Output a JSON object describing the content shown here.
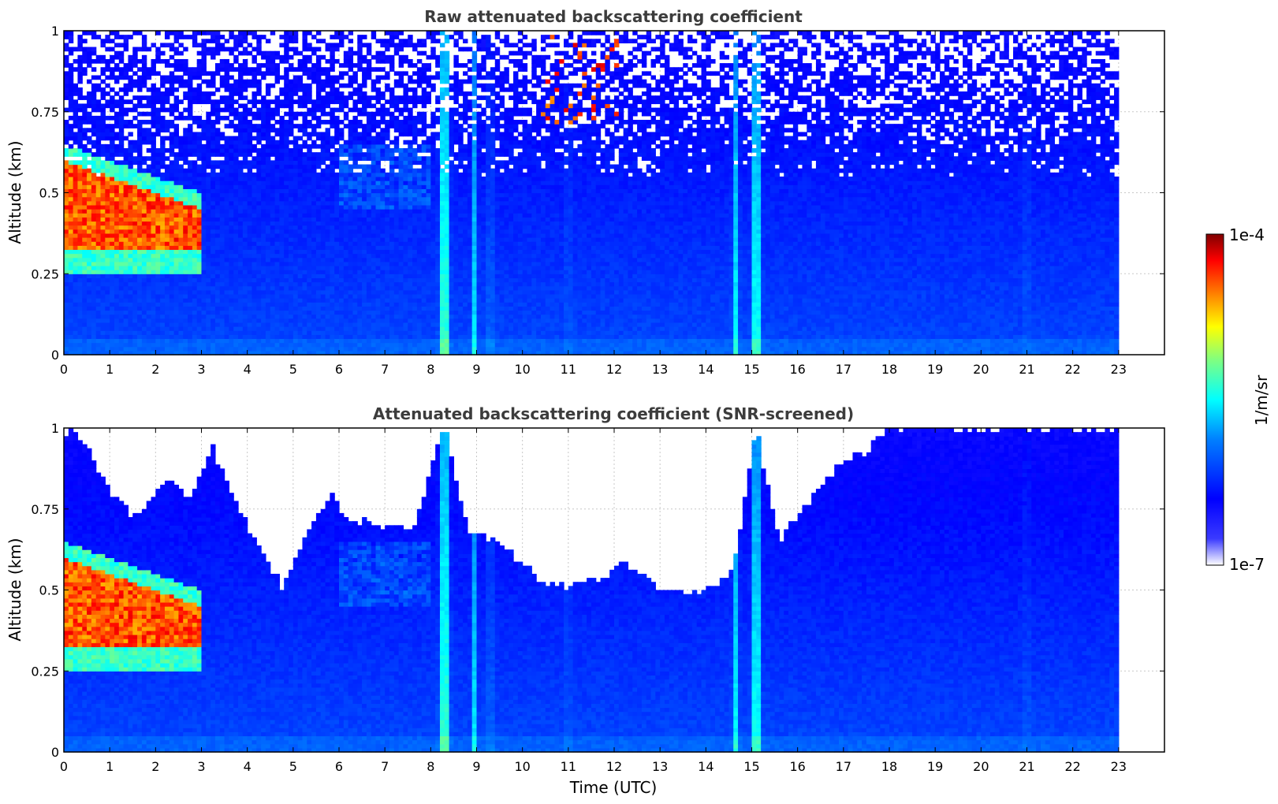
{
  "chart_data": [
    {
      "type": "heatmap",
      "title": "Raw attenuated backscattering coefficient",
      "xlabel": "",
      "ylabel": "Altitude (km)",
      "xlim": [
        0,
        24
      ],
      "ylim": [
        0,
        1
      ],
      "xticks": [
        "0",
        "1",
        "2",
        "3",
        "4",
        "5",
        "6",
        "7",
        "8",
        "9",
        "10",
        "11",
        "12",
        "13",
        "14",
        "15",
        "16",
        "17",
        "18",
        "19",
        "20",
        "21",
        "22",
        "23"
      ],
      "yticks": [
        "0",
        "0.25",
        "0.5",
        "0.75",
        "1"
      ],
      "data_end_time": 23,
      "grid": true,
      "features": [
        {
          "label": "low cloud layer",
          "x": [
            0,
            3
          ],
          "y": [
            0.3,
            0.65
          ],
          "level": "high"
        },
        {
          "label": "vertical streak",
          "x": 8.3,
          "level": "medium"
        },
        {
          "label": "vertical streak",
          "x": 15.1,
          "level": "medium"
        },
        {
          "label": "high scatter",
          "x": [
            10.4,
            12.3
          ],
          "y": [
            0.7,
            1.0
          ],
          "level": "high"
        }
      ]
    },
    {
      "type": "heatmap",
      "title": "Attenuated backscattering coefficient (SNR-screened)",
      "xlabel": "Time (UTC)",
      "ylabel": "Altitude (km)",
      "xlim": [
        0,
        24
      ],
      "ylim": [
        0,
        1
      ],
      "xticks": [
        "0",
        "1",
        "2",
        "3",
        "4",
        "5",
        "6",
        "7",
        "8",
        "9",
        "10",
        "11",
        "12",
        "13",
        "14",
        "15",
        "16",
        "17",
        "18",
        "19",
        "20",
        "21",
        "22",
        "23"
      ],
      "yticks": [
        "0",
        "0.25",
        "0.5",
        "0.75",
        "1"
      ],
      "data_end_time": 23,
      "grid": true,
      "screened_top_altitude": [
        [
          0,
          1.0
        ],
        [
          0.5,
          0.95
        ],
        [
          1.0,
          0.8
        ],
        [
          1.6,
          0.72
        ],
        [
          2.2,
          0.85
        ],
        [
          2.8,
          0.78
        ],
        [
          3.2,
          0.95
        ],
        [
          3.8,
          0.75
        ],
        [
          4.3,
          0.62
        ],
        [
          4.8,
          0.5
        ],
        [
          5.2,
          0.65
        ],
        [
          5.8,
          0.8
        ],
        [
          6.2,
          0.72
        ],
        [
          7.0,
          0.7
        ],
        [
          7.6,
          0.68
        ],
        [
          8.3,
          1.0
        ],
        [
          8.8,
          0.68
        ],
        [
          9.5,
          0.65
        ],
        [
          10.2,
          0.55
        ],
        [
          11.0,
          0.5
        ],
        [
          11.8,
          0.55
        ],
        [
          12.2,
          0.6
        ],
        [
          13.0,
          0.5
        ],
        [
          14.0,
          0.5
        ],
        [
          14.6,
          0.56
        ],
        [
          15.1,
          1.0
        ],
        [
          15.6,
          0.65
        ],
        [
          16.3,
          0.78
        ],
        [
          16.9,
          0.88
        ],
        [
          17.5,
          0.93
        ],
        [
          18.0,
          1.0
        ],
        [
          23,
          1.0
        ]
      ]
    }
  ],
  "colorbar": {
    "label": "1/m/sr",
    "max_label": "1e-4",
    "min_label": "1e-7",
    "colors": [
      "#ffffff",
      "#0000ff",
      "#0080ff",
      "#00ffff",
      "#80ff80",
      "#ffff00",
      "#ff8000",
      "#ff0000",
      "#800000"
    ]
  }
}
